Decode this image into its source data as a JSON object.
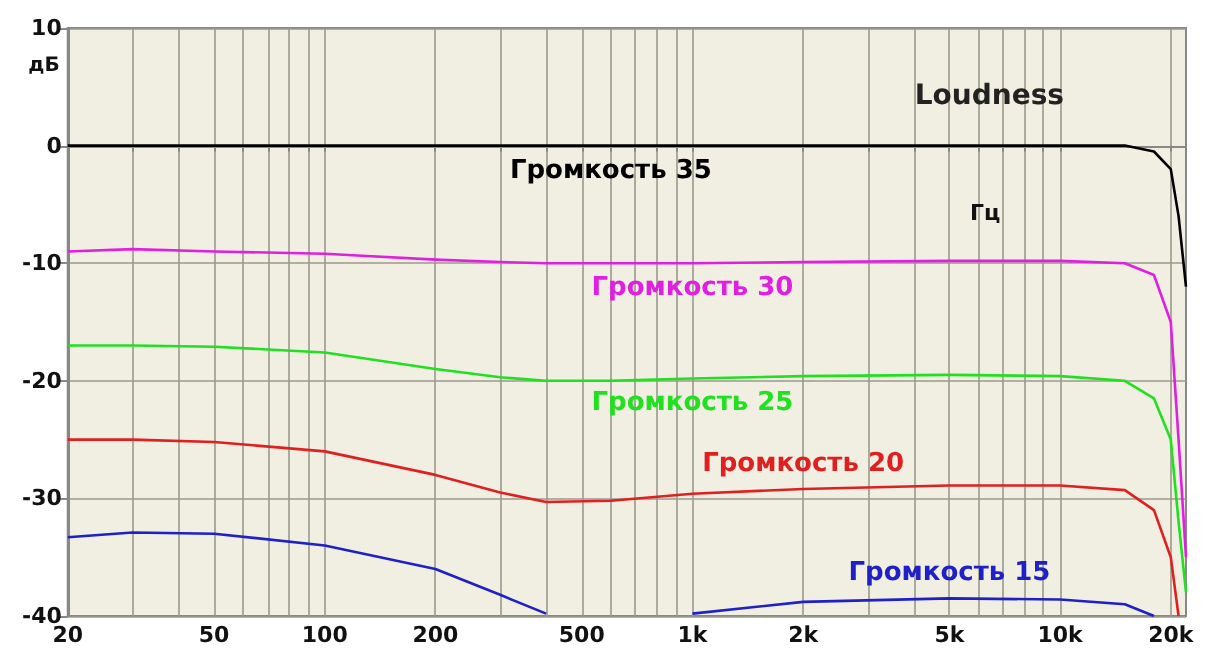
{
  "chart_data": {
    "type": "line",
    "title": "Loudness",
    "xlabel": "Гц",
    "ylabel": "дБ",
    "log": "x",
    "x": [
      20,
      30,
      50,
      100,
      200,
      300,
      400,
      600,
      1000,
      2000,
      5000,
      10000,
      15000,
      18000,
      20000,
      21000,
      22000
    ],
    "series": [
      {
        "name": "Громкость 35",
        "color": "#000000",
        "values": [
          0,
          0,
          0,
          0,
          0,
          0,
          0,
          0,
          0,
          0,
          0,
          0,
          0,
          -0.5,
          -2,
          -6,
          -12
        ]
      },
      {
        "name": "Громкость 30",
        "color": "#e020e0",
        "values": [
          -9,
          -8.8,
          -9,
          -9.2,
          -9.7,
          -9.9,
          -10,
          -10,
          -10,
          -9.9,
          -9.8,
          -9.8,
          -10,
          -11,
          -15,
          -25,
          -35
        ]
      },
      {
        "name": "Громкость 25",
        "color": "#20e020",
        "values": [
          -17,
          -17,
          -17.1,
          -17.6,
          -19,
          -19.7,
          -20,
          -20,
          -19.8,
          -19.6,
          -19.5,
          -19.6,
          -20,
          -21.5,
          -25,
          -32,
          -38
        ]
      },
      {
        "name": "Громкость 20",
        "color": "#e02020",
        "values": [
          -25,
          -25,
          -25.2,
          -26,
          -28,
          -29.5,
          -30.3,
          -30.2,
          -29.6,
          -29.2,
          -28.9,
          -28.9,
          -29.3,
          -31,
          -35,
          -40,
          null
        ]
      },
      {
        "name": "Громкость 15",
        "color": "#2020c8",
        "values": [
          -33.3,
          -32.9,
          -33,
          -34,
          -36,
          -38.2,
          -39.8,
          null,
          -39.8,
          -38.8,
          -38.5,
          -38.6,
          -39,
          -40,
          null,
          null,
          null
        ]
      }
    ],
    "xlim": [
      20,
      22000
    ],
    "xticks": [
      20,
      {
        "value": 30,
        "label": null
      },
      {
        "value": 40,
        "label": null
      },
      50,
      {
        "value": 60,
        "label": null
      },
      {
        "value": 70,
        "label": null
      },
      {
        "value": 80,
        "label": null
      },
      {
        "value": 90,
        "label": null
      },
      100,
      200,
      {
        "value": 300,
        "label": null
      },
      {
        "value": 400,
        "label": null
      },
      500,
      {
        "value": 600,
        "label": null
      },
      {
        "value": 700,
        "label": null
      },
      {
        "value": 800,
        "label": null
      },
      {
        "value": 900,
        "label": null
      },
      {
        "value": 1000,
        "label": "1k"
      },
      {
        "value": 2000,
        "label": "2k"
      },
      {
        "value": 3000,
        "label": null
      },
      {
        "value": 4000,
        "label": null
      },
      {
        "value": 5000,
        "label": "5k"
      },
      {
        "value": 6000,
        "label": null
      },
      {
        "value": 7000,
        "label": null
      },
      {
        "value": 8000,
        "label": null
      },
      {
        "value": 9000,
        "label": null
      },
      {
        "value": 10000,
        "label": "10k"
      },
      {
        "value": 20000,
        "label": "20k"
      }
    ],
    "ylim": [
      -40,
      10
    ],
    "yticks": [
      -40,
      -30,
      -20,
      -10,
      0,
      10
    ],
    "grid": true,
    "legend": false,
    "marker": "none",
    "line_style": "solid"
  }
}
